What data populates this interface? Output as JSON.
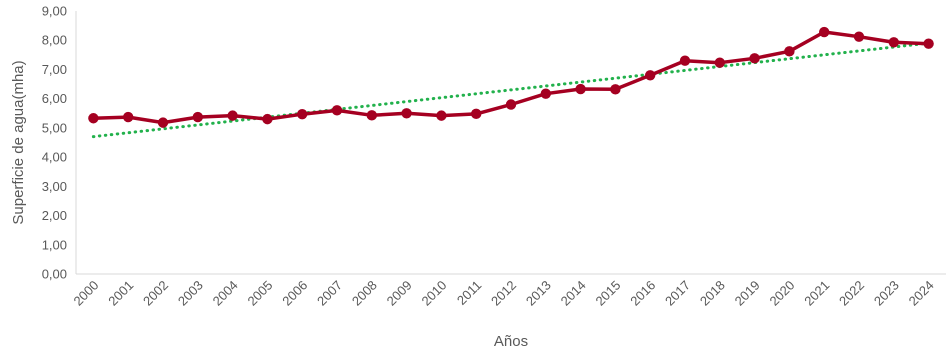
{
  "chart_data": {
    "type": "line",
    "xlabel": "Años",
    "ylabel": "Superficie de agua(mha)",
    "ylim": [
      0,
      9
    ],
    "y_ticks": [
      "0,00",
      "1,00",
      "2,00",
      "3,00",
      "4,00",
      "5,00",
      "6,00",
      "7,00",
      "8,00",
      "9,00"
    ],
    "categories": [
      "2000",
      "2001",
      "2002",
      "2003",
      "2004",
      "2005",
      "2006",
      "2007",
      "2008",
      "2009",
      "2010",
      "2011",
      "2012",
      "2013",
      "2014",
      "2015",
      "2016",
      "2017",
      "2018",
      "2019",
      "2020",
      "2021",
      "2022",
      "2023",
      "2024"
    ],
    "series": [
      {
        "values": [
          5.33,
          5.37,
          5.18,
          5.37,
          5.42,
          5.3,
          5.47,
          5.6,
          5.43,
          5.5,
          5.42,
          5.48,
          5.8,
          6.17,
          6.33,
          6.32,
          6.8,
          7.3,
          7.23,
          7.38,
          7.62,
          8.28,
          8.12,
          7.93,
          7.88
        ],
        "color": "#A50021",
        "style": "solid",
        "markers": true
      }
    ],
    "trendline": {
      "type": "linear",
      "color": "#22B14C",
      "style": "dotted",
      "start": 4.7,
      "end": 7.9
    },
    "grid": false,
    "legend": "none"
  }
}
